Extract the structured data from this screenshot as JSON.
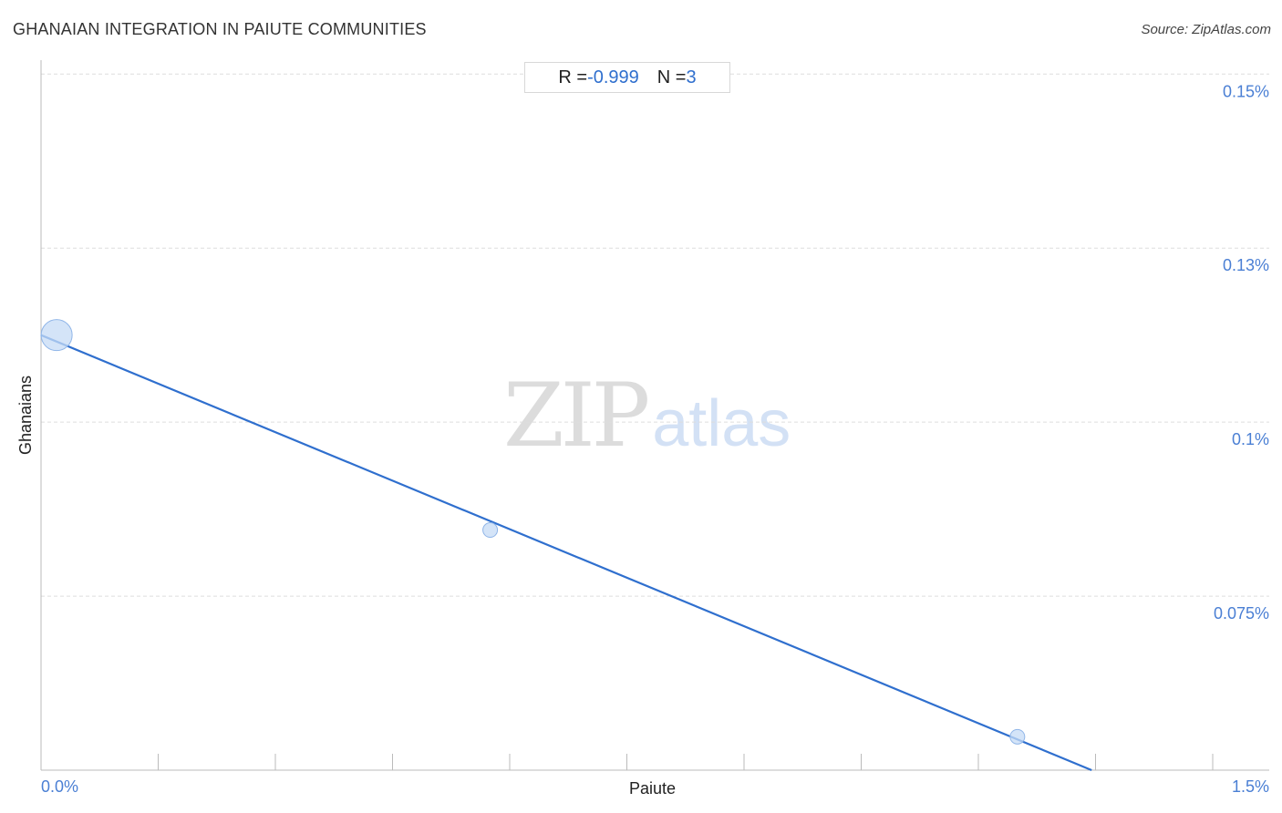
{
  "header": {
    "title": "GHANAIAN INTEGRATION IN PAIUTE COMMUNITIES",
    "source": "Source: ZipAtlas.com"
  },
  "stats": {
    "r_label": "R = ",
    "r_value": "-0.999",
    "n_label": "N = ",
    "n_value": "3"
  },
  "watermark": {
    "zip": "ZIP",
    "atlas": "atlas"
  },
  "colors": {
    "accent": "#2f6fce",
    "point_fill": "#c6dbf5",
    "point_stroke": "#8fb5e8",
    "grid": "#dddddd",
    "tick_label": "#4a7fd4"
  },
  "chart_data": {
    "type": "scatter",
    "title": "GHANAIAN INTEGRATION IN PAIUTE COMMUNITIES",
    "xlabel": "Paiute",
    "ylabel": "Ghanaians",
    "xlim": [
      0.0,
      1.5
    ],
    "ylim": [
      0.05,
      0.152
    ],
    "x_tick_labels": [
      {
        "value": 0.0,
        "label": "0.0%"
      },
      {
        "value": 1.5,
        "label": "1.5%"
      }
    ],
    "y_tick_labels": [
      {
        "value": 0.15,
        "label": "0.15%"
      },
      {
        "value": 0.125,
        "label": "0.13%"
      },
      {
        "value": 0.1,
        "label": "0.1%"
      },
      {
        "value": 0.075,
        "label": "0.075%"
      }
    ],
    "x_minor_ticks": [
      0.15,
      0.3,
      0.45,
      0.6,
      0.75,
      0.9,
      1.05,
      1.2,
      1.35,
      1.5
    ],
    "points": [
      {
        "x": 0.02,
        "y": 0.1125,
        "size": "large"
      },
      {
        "x": 0.575,
        "y": 0.0845,
        "size": "small"
      },
      {
        "x": 1.25,
        "y": 0.0548,
        "size": "small"
      }
    ],
    "trendline": {
      "x": [
        0.0,
        1.345
      ],
      "y": [
        0.1125,
        0.05
      ]
    },
    "grid": true,
    "r": -0.999,
    "n": 3
  }
}
